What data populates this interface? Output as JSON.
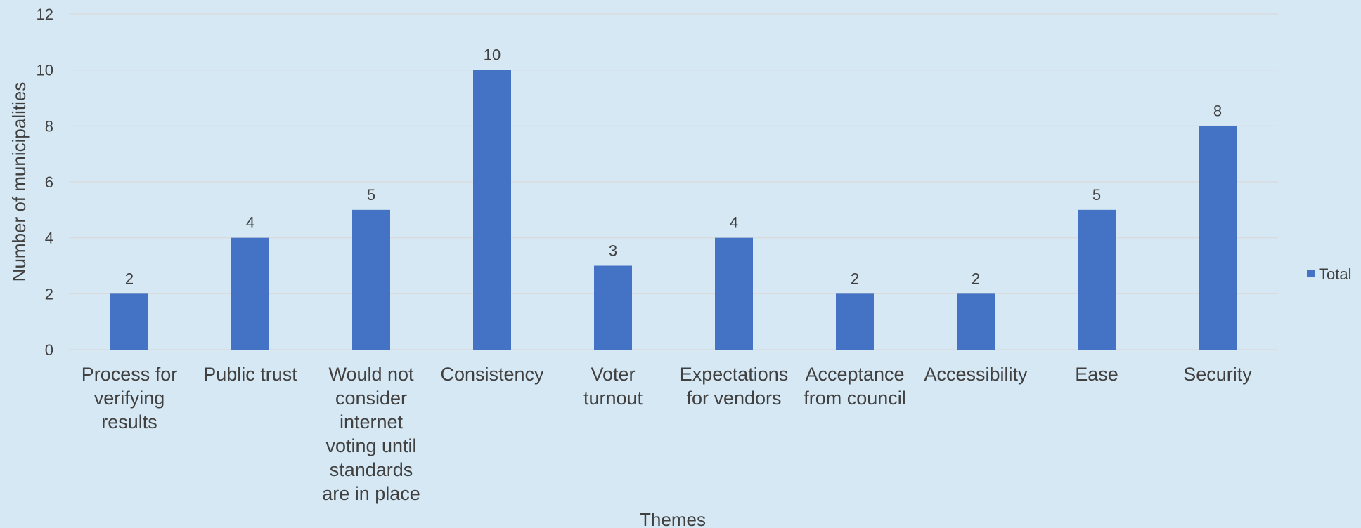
{
  "chart_data": {
    "type": "bar",
    "categories": [
      "Process for verifying results",
      "Public trust",
      "Would not consider internet voting until standards are in place",
      "Consistency",
      "Voter turnout",
      "Expectations for vendors",
      "Acceptance from council",
      "Accessibility",
      "Ease",
      "Security"
    ],
    "category_label_lines": [
      [
        "Process for",
        "verifying",
        "results"
      ],
      [
        "Public trust"
      ],
      [
        "Would not",
        "consider",
        "internet",
        "voting until",
        "standards",
        "are in place"
      ],
      [
        "Consistency"
      ],
      [
        "Voter",
        "turnout"
      ],
      [
        "Expectations",
        "for vendors"
      ],
      [
        "Acceptance",
        "from council"
      ],
      [
        "Accessibility"
      ],
      [
        "Ease"
      ],
      [
        "Security"
      ]
    ],
    "series": [
      {
        "name": "Total",
        "values": [
          2,
          4,
          5,
          10,
          3,
          4,
          2,
          2,
          5,
          8
        ],
        "color": "#4472C4"
      }
    ],
    "data_labels": true,
    "xlabel": "Themes",
    "ylabel": "Number of municipalities",
    "ylim": [
      0,
      12
    ],
    "yticks": [
      0,
      2,
      4,
      6,
      8,
      10,
      12
    ],
    "grid": true,
    "legend_position": "right",
    "colors": {
      "background": "#D6E8F4",
      "gridline": "#D9D9D9",
      "text": "#404040",
      "bar": "#4472C4"
    }
  }
}
